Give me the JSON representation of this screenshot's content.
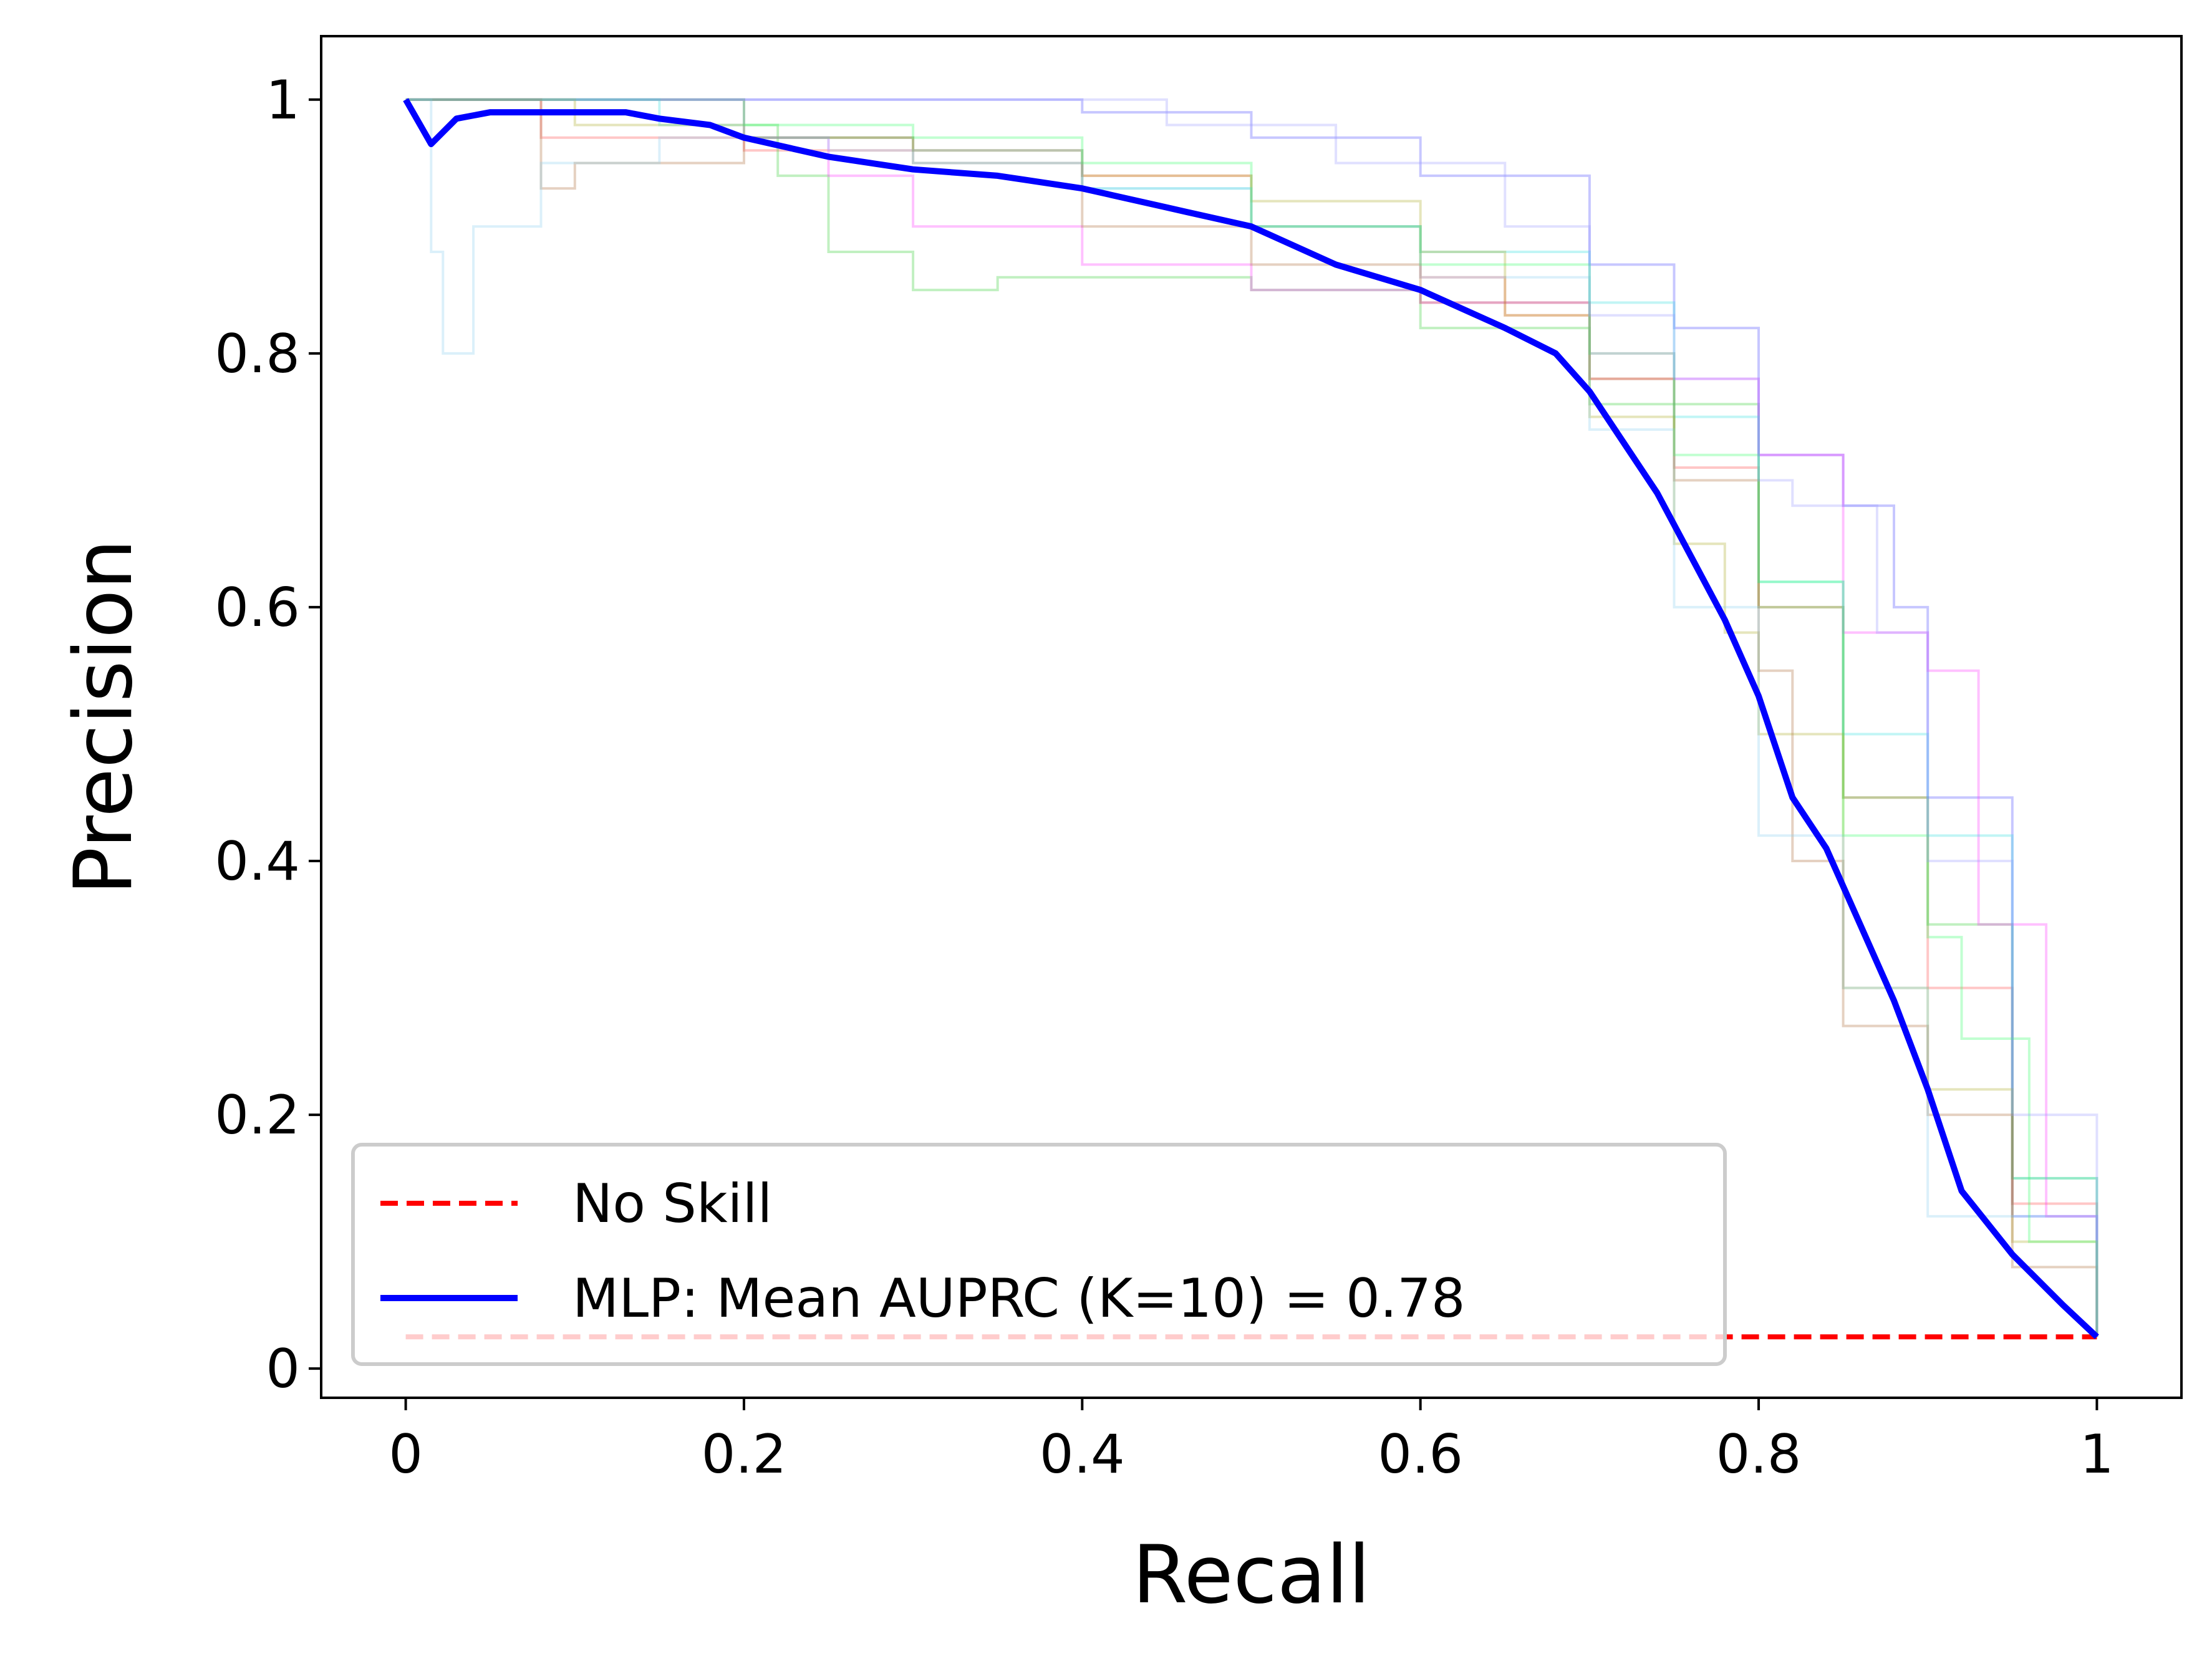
{
  "chart_data": {
    "type": "line",
    "xlabel": "Recall",
    "ylabel": "Precision",
    "xlim": [
      -0.05,
      1.05
    ],
    "ylim": [
      -0.023,
      1.05
    ],
    "xticks": [
      {
        "value": 0,
        "label": "0"
      },
      {
        "value": 0.2,
        "label": "0.2"
      },
      {
        "value": 0.4,
        "label": "0.4"
      },
      {
        "value": 0.6,
        "label": "0.6"
      },
      {
        "value": 0.8,
        "label": "0.8"
      },
      {
        "value": 1,
        "label": "1"
      }
    ],
    "yticks": [
      {
        "value": 0,
        "label": "0"
      },
      {
        "value": 0.2,
        "label": "0.2"
      },
      {
        "value": 0.4,
        "label": "0.4"
      },
      {
        "value": 0.6,
        "label": "0.6"
      },
      {
        "value": 0.8,
        "label": "0.8"
      },
      {
        "value": 1,
        "label": "1"
      }
    ],
    "grid": false,
    "legend_position": "lower-left",
    "no_skill": {
      "name": "No Skill",
      "color": "#ff0000",
      "style": "dashed",
      "x": [
        0,
        1
      ],
      "y": [
        0.025,
        0.025
      ]
    },
    "mean_curve": {
      "name": "MLP: Mean AUPRC (K=10) = 0.78",
      "color": "#0000ff",
      "x": [
        0,
        0.015,
        0.03,
        0.05,
        0.07,
        0.1,
        0.13,
        0.15,
        0.18,
        0.2,
        0.25,
        0.3,
        0.35,
        0.4,
        0.45,
        0.5,
        0.55,
        0.6,
        0.65,
        0.68,
        0.7,
        0.72,
        0.74,
        0.76,
        0.78,
        0.8,
        0.82,
        0.84,
        0.86,
        0.88,
        0.9,
        0.92,
        0.95,
        0.98,
        1.0
      ],
      "y": [
        1.0,
        0.965,
        0.985,
        0.99,
        0.99,
        0.99,
        0.99,
        0.985,
        0.98,
        0.97,
        0.955,
        0.945,
        0.94,
        0.93,
        0.915,
        0.9,
        0.87,
        0.85,
        0.82,
        0.8,
        0.77,
        0.73,
        0.69,
        0.64,
        0.59,
        0.53,
        0.45,
        0.41,
        0.35,
        0.29,
        0.22,
        0.14,
        0.09,
        0.05,
        0.025
      ]
    },
    "fold_curves": [
      {
        "color": "#ff4444",
        "x": [
          0,
          0.08,
          0.1,
          0.2,
          0.3,
          0.4,
          0.5,
          0.6,
          0.65,
          0.7,
          0.75,
          0.8,
          0.85,
          0.9,
          0.95,
          1.0
        ],
        "y": [
          1.0,
          0.97,
          0.97,
          0.96,
          0.95,
          0.94,
          0.9,
          0.86,
          0.83,
          0.78,
          0.71,
          0.6,
          0.45,
          0.3,
          0.13,
          0.025
        ]
      },
      {
        "color": "#33cc33",
        "x": [
          0,
          0.2,
          0.22,
          0.25,
          0.3,
          0.35,
          0.4,
          0.5,
          0.6,
          0.7,
          0.8,
          0.85,
          0.9,
          0.95,
          1.0
        ],
        "y": [
          1.0,
          0.98,
          0.94,
          0.88,
          0.85,
          0.86,
          0.86,
          0.85,
          0.82,
          0.76,
          0.6,
          0.45,
          0.35,
          0.15,
          0.025
        ]
      },
      {
        "color": "#4444ff",
        "x": [
          0,
          0.2,
          0.3,
          0.35,
          0.4,
          0.5,
          0.6,
          0.7,
          0.75,
          0.8,
          0.85,
          0.88,
          0.9,
          0.95,
          1.0
        ],
        "y": [
          1.0,
          1.0,
          1.0,
          1.0,
          0.99,
          0.97,
          0.94,
          0.87,
          0.82,
          0.72,
          0.68,
          0.6,
          0.45,
          0.12,
          0.025
        ]
      },
      {
        "color": "#ff33ff",
        "x": [
          0,
          0.2,
          0.25,
          0.3,
          0.4,
          0.5,
          0.6,
          0.7,
          0.75,
          0.8,
          0.85,
          0.9,
          0.93,
          0.97,
          1.0
        ],
        "y": [
          1.0,
          0.97,
          0.94,
          0.9,
          0.87,
          0.85,
          0.84,
          0.8,
          0.78,
          0.72,
          0.58,
          0.55,
          0.35,
          0.12,
          0.025
        ]
      },
      {
        "color": "#33dddd",
        "x": [
          0,
          0.1,
          0.15,
          0.2,
          0.3,
          0.4,
          0.5,
          0.6,
          0.7,
          0.75,
          0.8,
          0.85,
          0.9,
          0.95,
          1.0
        ],
        "y": [
          1.0,
          1.0,
          0.98,
          0.97,
          0.95,
          0.93,
          0.9,
          0.88,
          0.84,
          0.75,
          0.62,
          0.5,
          0.42,
          0.15,
          0.025
        ]
      },
      {
        "color": "#aaaa22",
        "x": [
          0,
          0.1,
          0.2,
          0.3,
          0.4,
          0.5,
          0.6,
          0.65,
          0.7,
          0.75,
          0.78,
          0.8,
          0.85,
          0.9,
          0.95,
          1.0
        ],
        "y": [
          1.0,
          0.98,
          0.97,
          0.96,
          0.94,
          0.92,
          0.88,
          0.83,
          0.75,
          0.65,
          0.58,
          0.5,
          0.3,
          0.22,
          0.1,
          0.025
        ]
      },
      {
        "color": "#aa6633",
        "x": [
          0,
          0.08,
          0.1,
          0.2,
          0.3,
          0.4,
          0.5,
          0.6,
          0.7,
          0.75,
          0.8,
          0.82,
          0.85,
          0.9,
          0.95,
          1.0
        ],
        "y": [
          1.0,
          0.93,
          0.95,
          0.97,
          0.96,
          0.9,
          0.87,
          0.84,
          0.78,
          0.7,
          0.55,
          0.4,
          0.27,
          0.2,
          0.08,
          0.025
        ]
      },
      {
        "color": "#88ccee",
        "x": [
          0,
          0.015,
          0.022,
          0.04,
          0.08,
          0.15,
          0.25,
          0.4,
          0.5,
          0.6,
          0.7,
          0.75,
          0.8,
          0.85,
          0.9,
          1.0
        ],
        "y": [
          1.0,
          0.88,
          0.8,
          0.9,
          0.95,
          0.97,
          0.96,
          0.93,
          0.9,
          0.86,
          0.74,
          0.6,
          0.42,
          0.3,
          0.12,
          0.025
        ]
      },
      {
        "color": "#33ff66",
        "x": [
          0,
          0.15,
          0.2,
          0.3,
          0.4,
          0.5,
          0.6,
          0.7,
          0.75,
          0.8,
          0.85,
          0.9,
          0.92,
          0.96,
          1.0
        ],
        "y": [
          1.0,
          1.0,
          0.98,
          0.97,
          0.95,
          0.9,
          0.87,
          0.8,
          0.72,
          0.62,
          0.42,
          0.34,
          0.26,
          0.1,
          0.025
        ]
      },
      {
        "color": "#9999ff",
        "x": [
          0,
          0.2,
          0.35,
          0.45,
          0.55,
          0.65,
          0.7,
          0.75,
          0.8,
          0.82,
          0.87,
          0.9,
          0.95,
          1.0
        ],
        "y": [
          1.0,
          1.0,
          1.0,
          0.98,
          0.95,
          0.9,
          0.83,
          0.78,
          0.7,
          0.68,
          0.58,
          0.4,
          0.2,
          0.025
        ]
      }
    ]
  }
}
